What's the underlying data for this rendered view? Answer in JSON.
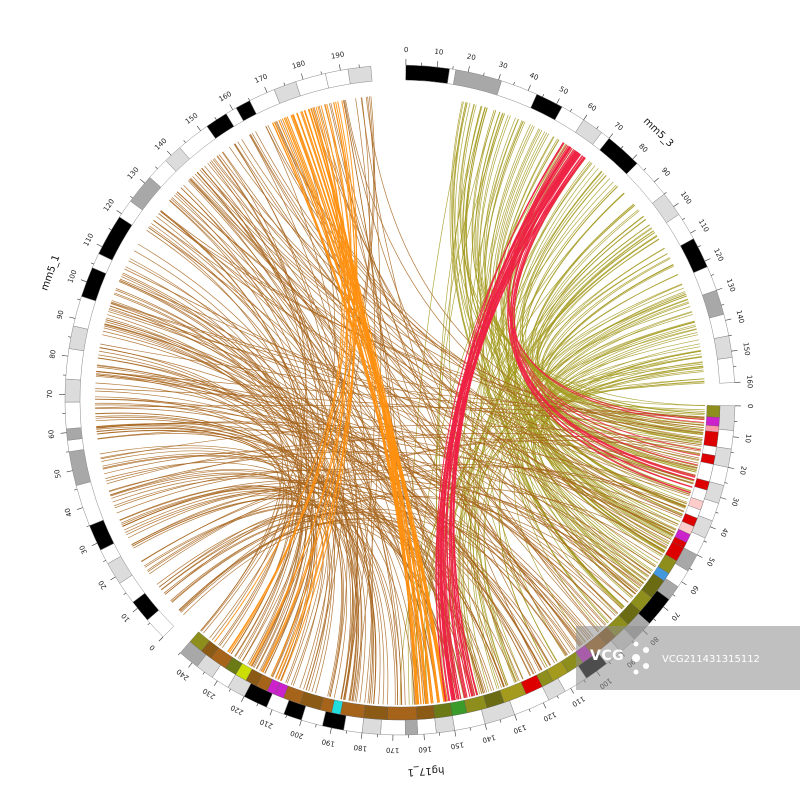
{
  "watermark": {
    "brand": "VCG",
    "id": "VCG211431315112"
  },
  "colors": {
    "link_mm5_3": "#a39a1e",
    "link_red": "#ee2244",
    "link_mm5_1": "#a6631a",
    "link_orange": "#ff9010",
    "band_black": "#000000",
    "band_gray": "#a8a8a8",
    "band_light": "#dcdcdc",
    "band_white": "#ffffff"
  },
  "chromosomes": [
    {
      "id": "mm5_3",
      "label": "mm5_3",
      "length": 160,
      "major_ticks": [
        0,
        10,
        20,
        30,
        40,
        50,
        60,
        70,
        80,
        90,
        100,
        110,
        120,
        130,
        140,
        150,
        160
      ],
      "bands": [
        {
          "s": 0,
          "e": 14,
          "c": "black"
        },
        {
          "s": 14,
          "e": 16,
          "c": "white"
        },
        {
          "s": 16,
          "e": 31,
          "c": "gray"
        },
        {
          "s": 31,
          "e": 43,
          "c": "white"
        },
        {
          "s": 43,
          "e": 52,
          "c": "black"
        },
        {
          "s": 52,
          "e": 60,
          "c": "white"
        },
        {
          "s": 60,
          "e": 67,
          "c": "light"
        },
        {
          "s": 67,
          "e": 70,
          "c": "white"
        },
        {
          "s": 70,
          "e": 82,
          "c": "black"
        },
        {
          "s": 82,
          "e": 95,
          "c": "white"
        },
        {
          "s": 95,
          "e": 103,
          "c": "light"
        },
        {
          "s": 103,
          "e": 112,
          "c": "white"
        },
        {
          "s": 112,
          "e": 122,
          "c": "black"
        },
        {
          "s": 122,
          "e": 130,
          "c": "white"
        },
        {
          "s": 130,
          "e": 138,
          "c": "gray"
        },
        {
          "s": 138,
          "e": 145,
          "c": "white"
        },
        {
          "s": 145,
          "e": 152,
          "c": "light"
        },
        {
          "s": 152,
          "e": 160,
          "c": "white"
        }
      ]
    },
    {
      "id": "hg17_1",
      "label": "hg17_1",
      "length": 245,
      "major_ticks": [
        0,
        10,
        20,
        30,
        40,
        50,
        60,
        70,
        80,
        90,
        100,
        110,
        120,
        130,
        140,
        150,
        160,
        170,
        180,
        190,
        200,
        210,
        220,
        230,
        240
      ],
      "bands": [
        {
          "s": 0,
          "e": 8,
          "c": "light"
        },
        {
          "s": 8,
          "e": 14,
          "c": "white"
        },
        {
          "s": 14,
          "e": 20,
          "c": "light"
        },
        {
          "s": 20,
          "e": 26,
          "c": "white"
        },
        {
          "s": 26,
          "e": 32,
          "c": "light"
        },
        {
          "s": 32,
          "e": 38,
          "c": "white"
        },
        {
          "s": 38,
          "e": 44,
          "c": "light"
        },
        {
          "s": 44,
          "e": 50,
          "c": "white"
        },
        {
          "s": 50,
          "e": 56,
          "c": "gray"
        },
        {
          "s": 56,
          "e": 62,
          "c": "white"
        },
        {
          "s": 62,
          "e": 67,
          "c": "gray"
        },
        {
          "s": 67,
          "e": 77,
          "c": "black"
        },
        {
          "s": 77,
          "e": 84,
          "c": "gray"
        },
        {
          "s": 84,
          "e": 90,
          "c": "light"
        },
        {
          "s": 90,
          "e": 96,
          "c": "white"
        },
        {
          "s": 96,
          "e": 104,
          "c": "black"
        },
        {
          "s": 104,
          "e": 112,
          "c": "white"
        },
        {
          "s": 112,
          "e": 118,
          "c": "light"
        },
        {
          "s": 118,
          "e": 130,
          "c": "white"
        },
        {
          "s": 130,
          "e": 140,
          "c": "light"
        },
        {
          "s": 140,
          "e": 150,
          "c": "white"
        },
        {
          "s": 150,
          "e": 156,
          "c": "light"
        },
        {
          "s": 156,
          "e": 162,
          "c": "white"
        },
        {
          "s": 162,
          "e": 166,
          "c": "gray"
        },
        {
          "s": 166,
          "e": 174,
          "c": "white"
        },
        {
          "s": 174,
          "e": 180,
          "c": "light"
        },
        {
          "s": 180,
          "e": 186,
          "c": "white"
        },
        {
          "s": 186,
          "e": 193,
          "c": "black"
        },
        {
          "s": 193,
          "e": 200,
          "c": "white"
        },
        {
          "s": 200,
          "e": 206,
          "c": "black"
        },
        {
          "s": 206,
          "e": 212,
          "c": "white"
        },
        {
          "s": 212,
          "e": 220,
          "c": "black"
        },
        {
          "s": 220,
          "e": 226,
          "c": "light"
        },
        {
          "s": 226,
          "e": 232,
          "c": "white"
        },
        {
          "s": 232,
          "e": 238,
          "c": "light"
        },
        {
          "s": 238,
          "e": 245,
          "c": "gray"
        }
      ],
      "colored_segments": [
        {
          "s": 0,
          "e": 4,
          "c": "#8e8e1c"
        },
        {
          "s": 4,
          "e": 7,
          "c": "#cc22cc"
        },
        {
          "s": 7,
          "e": 9,
          "c": "#ff99aa"
        },
        {
          "s": 9,
          "e": 14,
          "c": "#dd0000"
        },
        {
          "s": 14,
          "e": 17,
          "c": "#ffffff"
        },
        {
          "s": 17,
          "e": 20,
          "c": "#dd0000"
        },
        {
          "s": 20,
          "e": 26,
          "c": "#ffffff"
        },
        {
          "s": 26,
          "e": 29,
          "c": "#dd0000"
        },
        {
          "s": 29,
          "e": 33,
          "c": "#ffffff"
        },
        {
          "s": 33,
          "e": 36,
          "c": "#ffcccc"
        },
        {
          "s": 36,
          "e": 39,
          "c": "#ffffff"
        },
        {
          "s": 39,
          "e": 42,
          "c": "#dd0000"
        },
        {
          "s": 42,
          "e": 45,
          "c": "#ffcccc"
        },
        {
          "s": 45,
          "e": 48,
          "c": "#cc22cc"
        },
        {
          "s": 48,
          "e": 50,
          "c": "#dd0000"
        },
        {
          "s": 50,
          "e": 55,
          "c": "#dd0000"
        },
        {
          "s": 55,
          "e": 60,
          "c": "#8e8e1c"
        },
        {
          "s": 60,
          "e": 63,
          "c": "#4499dd"
        },
        {
          "s": 63,
          "e": 70,
          "c": "#6b6b14"
        },
        {
          "s": 70,
          "e": 76,
          "c": "#8e8e1c"
        },
        {
          "s": 76,
          "e": 82,
          "c": "#6b6b14"
        },
        {
          "s": 82,
          "e": 88,
          "c": "#8e8e1c"
        },
        {
          "s": 88,
          "e": 92,
          "c": "#8b5a14"
        },
        {
          "s": 92,
          "e": 98,
          "c": "#a6631a"
        },
        {
          "s": 98,
          "e": 102,
          "c": "#cc22cc"
        },
        {
          "s": 102,
          "e": 108,
          "c": "#8e8e1c"
        },
        {
          "s": 108,
          "e": 114,
          "c": "#a39a1e"
        },
        {
          "s": 114,
          "e": 118,
          "c": "#8e8e1c"
        },
        {
          "s": 118,
          "e": 124,
          "c": "#dd0000"
        },
        {
          "s": 124,
          "e": 132,
          "c": "#a39a1e"
        },
        {
          "s": 132,
          "e": 138,
          "c": "#6b6b14"
        },
        {
          "s": 138,
          "e": 145,
          "c": "#8e8e1c"
        },
        {
          "s": 145,
          "e": 150,
          "c": "#3a9a2a"
        },
        {
          "s": 150,
          "e": 156,
          "c": "#6b7a14"
        },
        {
          "s": 156,
          "e": 162,
          "c": "#8b5a14"
        },
        {
          "s": 162,
          "e": 172,
          "c": "#a6631a"
        },
        {
          "s": 172,
          "e": 180,
          "c": "#8b5a14"
        },
        {
          "s": 180,
          "e": 188,
          "c": "#a6631a"
        },
        {
          "s": 188,
          "e": 191,
          "c": "#22dddd"
        },
        {
          "s": 191,
          "e": 195,
          "c": "#a6631a"
        },
        {
          "s": 195,
          "e": 202,
          "c": "#8b5a14"
        },
        {
          "s": 202,
          "e": 208,
          "c": "#a6631a"
        },
        {
          "s": 208,
          "e": 211,
          "c": "#cc22cc"
        },
        {
          "s": 211,
          "e": 214,
          "c": "#cc22cc"
        },
        {
          "s": 214,
          "e": 218,
          "c": "#a6631a"
        },
        {
          "s": 218,
          "e": 222,
          "c": "#8b5a14"
        },
        {
          "s": 222,
          "e": 226,
          "c": "#ccdd00"
        },
        {
          "s": 226,
          "e": 230,
          "c": "#6b7a14"
        },
        {
          "s": 230,
          "e": 236,
          "c": "#a6631a"
        },
        {
          "s": 236,
          "e": 240,
          "c": "#8b5a14"
        },
        {
          "s": 240,
          "e": 245,
          "c": "#8e8e1c"
        }
      ]
    },
    {
      "id": "mm5_1",
      "label": "mm5_1",
      "length": 198,
      "major_ticks": [
        0,
        10,
        20,
        30,
        40,
        50,
        60,
        70,
        80,
        90,
        100,
        110,
        120,
        130,
        140,
        150,
        160,
        170,
        180,
        190
      ],
      "bands": [
        {
          "s": 0,
          "e": 6,
          "c": "white"
        },
        {
          "s": 6,
          "e": 12,
          "c": "black"
        },
        {
          "s": 12,
          "e": 18,
          "c": "white"
        },
        {
          "s": 18,
          "e": 24,
          "c": "light"
        },
        {
          "s": 24,
          "e": 28,
          "c": "white"
        },
        {
          "s": 28,
          "e": 35,
          "c": "black"
        },
        {
          "s": 35,
          "e": 46,
          "c": "white"
        },
        {
          "s": 46,
          "e": 55,
          "c": "gray"
        },
        {
          "s": 55,
          "e": 58,
          "c": "white"
        },
        {
          "s": 58,
          "e": 61,
          "c": "gray"
        },
        {
          "s": 61,
          "e": 68,
          "c": "white"
        },
        {
          "s": 68,
          "e": 74,
          "c": "light"
        },
        {
          "s": 74,
          "e": 82,
          "c": "white"
        },
        {
          "s": 82,
          "e": 88,
          "c": "light"
        },
        {
          "s": 88,
          "e": 96,
          "c": "white"
        },
        {
          "s": 96,
          "e": 104,
          "c": "black"
        },
        {
          "s": 104,
          "e": 108,
          "c": "white"
        },
        {
          "s": 108,
          "e": 119,
          "c": "black"
        },
        {
          "s": 119,
          "e": 124,
          "c": "white"
        },
        {
          "s": 124,
          "e": 132,
          "c": "gray"
        },
        {
          "s": 132,
          "e": 138,
          "c": "white"
        },
        {
          "s": 138,
          "e": 143,
          "c": "light"
        },
        {
          "s": 143,
          "e": 152,
          "c": "white"
        },
        {
          "s": 152,
          "e": 158,
          "c": "black"
        },
        {
          "s": 158,
          "e": 161,
          "c": "white"
        },
        {
          "s": 161,
          "e": 165,
          "c": "black"
        },
        {
          "s": 165,
          "e": 172,
          "c": "white"
        },
        {
          "s": 172,
          "e": 178,
          "c": "light"
        },
        {
          "s": 178,
          "e": 186,
          "c": "white"
        },
        {
          "s": 186,
          "e": 192,
          "c": "white"
        },
        {
          "s": 192,
          "e": 198,
          "c": "light"
        }
      ]
    }
  ]
}
